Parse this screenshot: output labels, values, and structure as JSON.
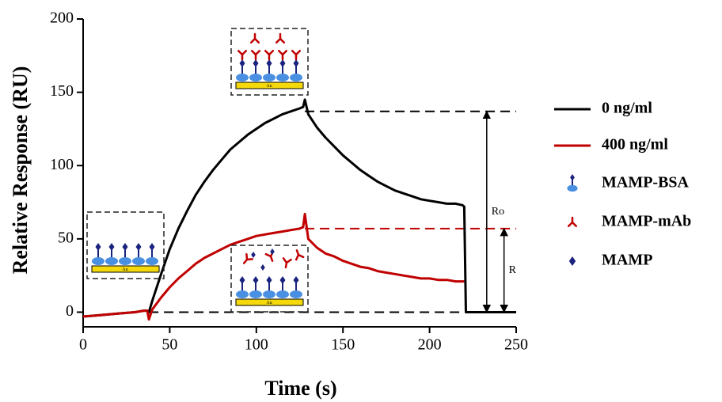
{
  "chart_data": {
    "type": "line",
    "x_label": "Time (s)",
    "y_label": "Relative Response (RU)",
    "xlim": [
      0,
      250
    ],
    "xticks": [
      0,
      50,
      100,
      150,
      200,
      250
    ],
    "ylim": [
      -10,
      200
    ],
    "yticks": [
      0,
      50,
      100,
      150,
      200
    ],
    "x": [
      0,
      5,
      10,
      15,
      20,
      25,
      30,
      35,
      37,
      38,
      40,
      45,
      50,
      55,
      60,
      65,
      70,
      75,
      80,
      85,
      90,
      95,
      100,
      105,
      110,
      115,
      120,
      125,
      127,
      128,
      130,
      135,
      140,
      145,
      150,
      155,
      160,
      165,
      170,
      175,
      180,
      185,
      190,
      195,
      200,
      205,
      210,
      215,
      219,
      220,
      221,
      225,
      230,
      235,
      240,
      245,
      250
    ],
    "series": [
      {
        "name": "0 ng/ml",
        "color": "#000000",
        "values": [
          -3,
          -2.5,
          -2,
          -1.5,
          -1,
          -0.5,
          0,
          1,
          1,
          0,
          8,
          26,
          43,
          57,
          69,
          80,
          89,
          97,
          104,
          111,
          116,
          121,
          125,
          129,
          132,
          135,
          137,
          139,
          140,
          145,
          135,
          126,
          119,
          113,
          107,
          102,
          97,
          93,
          89,
          86,
          83,
          81,
          79,
          77,
          76,
          75,
          74,
          74,
          73,
          72,
          0,
          0,
          0,
          0,
          0,
          0,
          0
        ]
      },
      {
        "name": "400 ng/ml",
        "color": "#c00000",
        "values": [
          -3,
          -2.5,
          -2,
          -1.5,
          -1,
          -0.5,
          0,
          1,
          1,
          -5,
          2,
          10,
          17,
          23,
          28,
          33,
          37,
          40,
          43,
          46,
          48,
          50,
          52,
          53,
          54,
          55,
          56,
          57,
          58,
          67,
          50,
          44,
          40,
          38,
          35,
          33,
          31,
          30,
          28,
          27,
          26,
          25,
          24,
          23,
          23,
          22,
          22,
          21,
          21,
          21,
          null,
          null,
          null,
          null,
          null,
          null,
          null
        ]
      }
    ],
    "reference_lines": [
      {
        "y": 0,
        "x_from": 38,
        "color": "#000000"
      },
      {
        "y": 137,
        "x_from": 128,
        "color": "#000000"
      },
      {
        "y": 57,
        "x_from": 128,
        "color": "#c00000"
      }
    ],
    "annotations": [
      {
        "text": "Ro",
        "x": 233,
        "from": 0,
        "to": 137
      },
      {
        "text": "R",
        "x": 243,
        "from": 0,
        "to": 57
      }
    ],
    "legend_symbols": [
      "MAMP-BSA",
      "MAMP-mAb",
      "MAMP"
    ],
    "substrate_label": "Au"
  }
}
